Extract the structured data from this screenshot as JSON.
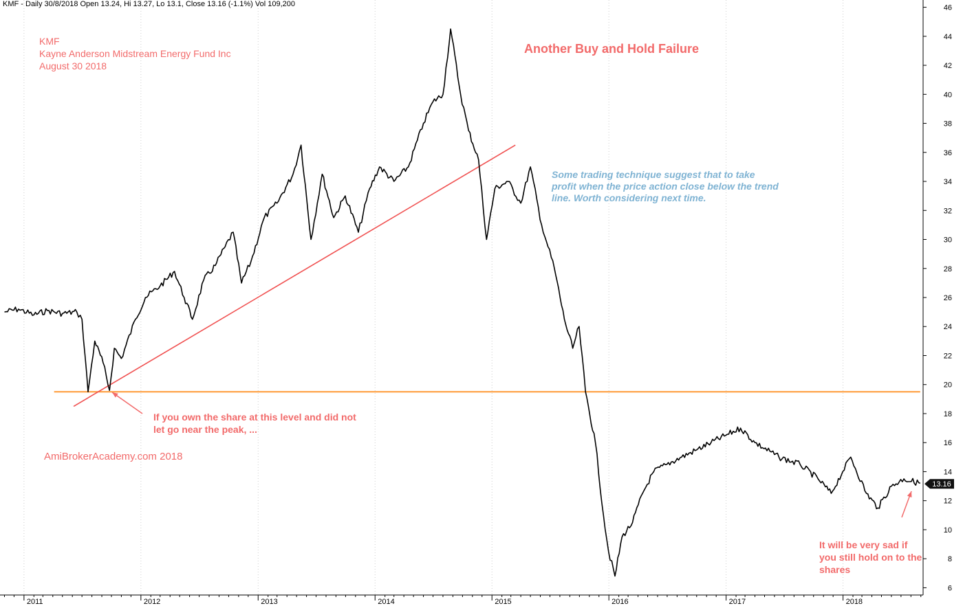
{
  "header": {
    "text": "KMF - Daily 30/8/2018 Open 13.24, Hi 13.27, Lo 13.1, Close 13.16 (-1.1%) Vol 109,200"
  },
  "titleblock": {
    "ticker": "KMF",
    "company": "Kayne Anderson Midstream Energy Fund Inc",
    "date": "August 30 2018"
  },
  "annotations": {
    "main_title": "Another Buy and Hold Failure",
    "trend_note": "Some trading technique suggest that to take profit when the price action close below the trend line. Worth considering next time.",
    "own_note": "If you own the share at this level and did not let go near the peak, ...",
    "sad_note": "It will be very sad if you still hold on to the shares",
    "watermark": "AmiBrokerAcademy.com  2018"
  },
  "chart_data": {
    "type": "line",
    "title": "",
    "xlabel": "",
    "ylabel": "",
    "x_range": [
      "2010-10-31",
      "2018-09-08"
    ],
    "ylim": [
      5.5,
      46.5
    ],
    "y_ticks": [
      6,
      8,
      10,
      12,
      14,
      16,
      18,
      20,
      22,
      24,
      26,
      28,
      30,
      32,
      34,
      36,
      38,
      40,
      42,
      44,
      46
    ],
    "x_tick_labels": [
      {
        "date": "2011-01-01",
        "label": "2011"
      },
      {
        "date": "2012-01-01",
        "label": "2012"
      },
      {
        "date": "2013-01-01",
        "label": "2013"
      },
      {
        "date": "2014-01-01",
        "label": "2014"
      },
      {
        "date": "2015-01-01",
        "label": "2015"
      },
      {
        "date": "2016-01-01",
        "label": "2016"
      },
      {
        "date": "2017-01-01",
        "label": "2017"
      },
      {
        "date": "2018-01-01",
        "label": "2018"
      }
    ],
    "grid": true,
    "last_close": 13.16,
    "last_close_label": "13.16",
    "series": [
      {
        "color": "#000000",
        "x": [
          "2010-11-01",
          "2010-12-15",
          "2011-02-01",
          "2011-03-15",
          "2011-05-01",
          "2011-06-15",
          "2011-07-01",
          "2011-07-20",
          "2011-08-10",
          "2011-09-05",
          "2011-09-25",
          "2011-10-10",
          "2011-11-01",
          "2011-12-15",
          "2012-01-15",
          "2012-03-01",
          "2012-04-15",
          "2012-05-15",
          "2012-06-10",
          "2012-07-15",
          "2012-08-20",
          "2012-09-20",
          "2012-10-15",
          "2012-11-10",
          "2012-12-10",
          "2013-01-20",
          "2013-03-01",
          "2013-04-20",
          "2013-05-15",
          "2013-06-15",
          "2013-07-20",
          "2013-08-25",
          "2013-09-30",
          "2013-11-10",
          "2013-12-15",
          "2014-01-15",
          "2014-03-01",
          "2014-04-15",
          "2014-06-01",
          "2014-07-01",
          "2014-08-01",
          "2014-08-25",
          "2014-09-25",
          "2014-10-20",
          "2014-11-20",
          "2014-12-15",
          "2015-01-10",
          "2015-02-20",
          "2015-04-01",
          "2015-05-01",
          "2015-06-05",
          "2015-06-25",
          "2015-07-15",
          "2015-08-15",
          "2015-09-10",
          "2015-09-30",
          "2015-10-20",
          "2015-11-20",
          "2015-12-15",
          "2015-12-31",
          "2016-01-20",
          "2016-02-11",
          "2016-03-15",
          "2016-04-15",
          "2016-05-20",
          "2016-06-30",
          "2016-08-15",
          "2016-10-01",
          "2016-11-15",
          "2016-12-31",
          "2017-02-15",
          "2017-04-01",
          "2017-06-15",
          "2017-08-20",
          "2017-10-15",
          "2017-11-25",
          "2017-12-31",
          "2018-01-25",
          "2018-03-15",
          "2018-04-20",
          "2018-06-01",
          "2018-07-10",
          "2018-08-30"
        ],
        "y": [
          25.0,
          25.2,
          24.8,
          25.1,
          24.9,
          25.0,
          24.5,
          19.5,
          23.0,
          21.5,
          19.6,
          22.5,
          21.8,
          24.5,
          26.0,
          26.8,
          27.8,
          26.0,
          24.5,
          27.2,
          28.2,
          29.5,
          30.5,
          27.0,
          28.5,
          31.5,
          32.5,
          34.5,
          36.5,
          30.0,
          34.5,
          31.5,
          33.0,
          30.5,
          33.5,
          35.0,
          34.0,
          35.0,
          38.0,
          39.5,
          40.0,
          44.5,
          40.0,
          37.5,
          35.5,
          30.0,
          33.5,
          34.0,
          32.5,
          35.0,
          31.0,
          29.5,
          28.0,
          24.5,
          22.5,
          24.0,
          19.5,
          16.0,
          11.0,
          8.5,
          6.8,
          9.5,
          10.5,
          12.5,
          14.0,
          14.5,
          15.0,
          15.5,
          16.0,
          16.5,
          17.0,
          16.0,
          15.0,
          14.5,
          13.5,
          12.5,
          14.0,
          15.0,
          12.5,
          11.5,
          13.0,
          13.5,
          13.2
        ]
      }
    ],
    "support_line": {
      "y": 19.5,
      "from": "2011-04-05",
      "to": "2018-08-30",
      "color": "#ff9933"
    },
    "trend_line": {
      "from": {
        "date": "2011-06-05",
        "y": 18.5
      },
      "to": {
        "date": "2015-03-15",
        "y": 36.5
      },
      "color": "#f05050"
    }
  }
}
